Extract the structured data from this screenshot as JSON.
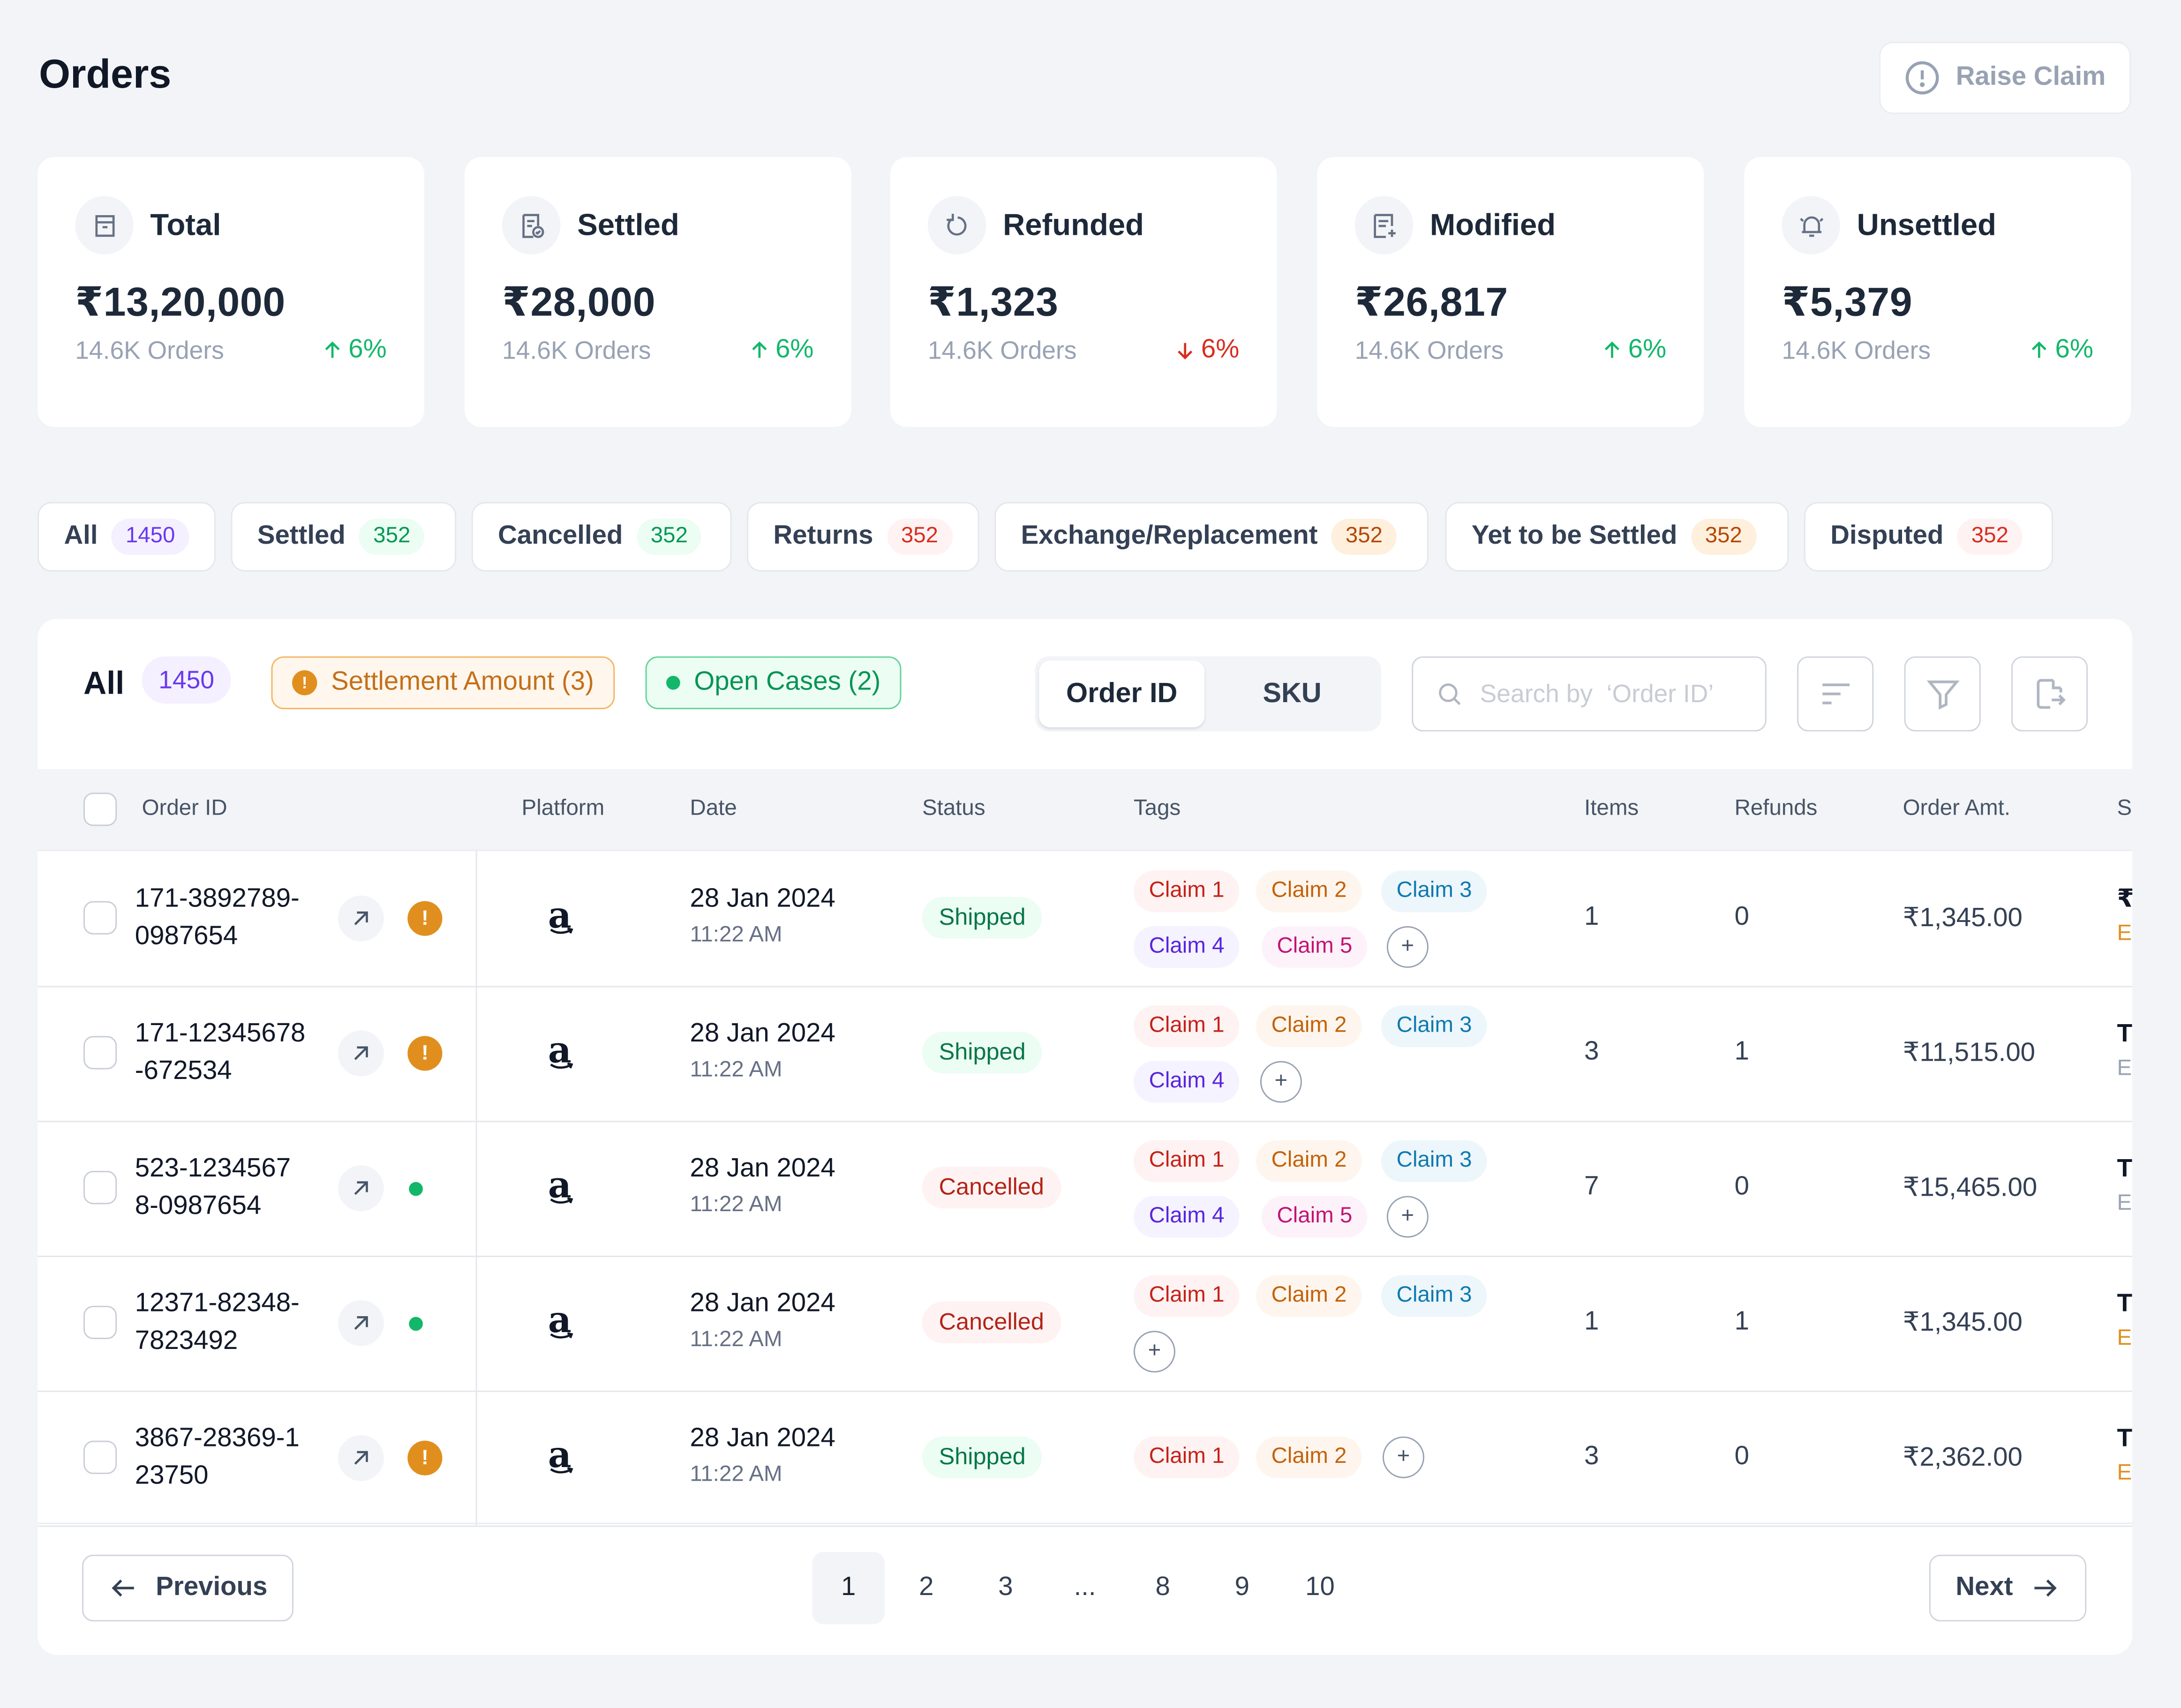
{
  "page": {
    "title": "Orders",
    "raise_claim_label": "Raise Claim"
  },
  "stats": [
    {
      "label": "Total",
      "value": "₹13,20,000",
      "orders": "14.6K Orders",
      "change": "6%",
      "direction": "up",
      "icon": "box-icon"
    },
    {
      "label": "Settled",
      "value": "₹28,000",
      "orders": "14.6K Orders",
      "change": "6%",
      "direction": "up",
      "icon": "receipt-check-icon"
    },
    {
      "label": "Refunded",
      "value": "₹1,323",
      "orders": "14.6K Orders",
      "change": "6%",
      "direction": "down",
      "icon": "refresh-icon"
    },
    {
      "label": "Modified",
      "value": "₹26,817",
      "orders": "14.6K Orders",
      "change": "6%",
      "direction": "up",
      "icon": "receipt-edit-icon"
    },
    {
      "label": "Unsettled",
      "value": "₹5,379",
      "orders": "14.6K Orders",
      "change": "6%",
      "direction": "up",
      "icon": "bell-icon"
    }
  ],
  "tabs": [
    {
      "label": "All",
      "count": "1450",
      "color": "purple"
    },
    {
      "label": "Settled",
      "count": "352",
      "color": "green"
    },
    {
      "label": "Cancelled",
      "count": "352",
      "color": "green"
    },
    {
      "label": "Returns",
      "count": "352",
      "color": "red"
    },
    {
      "label": "Exchange/Replacement",
      "count": "352",
      "color": "orange"
    },
    {
      "label": "Yet to be Settled",
      "count": "352",
      "color": "orange"
    },
    {
      "label": "Disputed",
      "count": "352",
      "color": "red"
    }
  ],
  "toolbar": {
    "all_label": "All",
    "all_count": "1450",
    "settlement_chip": "Settlement Amount (3)",
    "open_cases_chip": "Open Cases (2)",
    "segment_order_id": "Order ID",
    "segment_sku": "SKU",
    "search_placeholder": "Search by  ‘Order ID’"
  },
  "columns": [
    "Order ID",
    "Platform",
    "Date",
    "Status",
    "Tags",
    "Items",
    "Refunds",
    "Order Amt.",
    "S"
  ],
  "rows": [
    {
      "order_id_1": "171-3892789-",
      "order_id_2": "0987654",
      "indicator": "warning",
      "platform": "a",
      "date": "28 Jan 2024",
      "time": "11:22 AM",
      "status": "Shipped",
      "tags": [
        "Claim 1",
        "Claim 2",
        "Claim 3",
        "Claim 4",
        "Claim 5"
      ],
      "items": "1",
      "refunds": "0",
      "amount": "₹1,345.00",
      "s_top": "₹",
      "s_bottom": "E",
      "s_bottom_color": "orange"
    },
    {
      "order_id_1": "171-12345678",
      "order_id_2": "-672534",
      "indicator": "warning",
      "platform": "a",
      "date": "28 Jan 2024",
      "time": "11:22 AM",
      "status": "Shipped",
      "tags": [
        "Claim 1",
        "Claim 2",
        "Claim 3",
        "Claim 4"
      ],
      "items": "3",
      "refunds": "1",
      "amount": "₹11,515.00",
      "s_top": "T",
      "s_bottom": "E",
      "s_bottom_color": "gray"
    },
    {
      "order_id_1": "523-1234567",
      "order_id_2": "8-0987654",
      "indicator": "dot",
      "platform": "a",
      "date": "28 Jan 2024",
      "time": "11:22 AM",
      "status": "Cancelled",
      "tags": [
        "Claim 1",
        "Claim 2",
        "Claim 3",
        "Claim 4",
        "Claim 5"
      ],
      "items": "7",
      "refunds": "0",
      "amount": "₹15,465.00",
      "s_top": "T",
      "s_bottom": "E",
      "s_bottom_color": "gray"
    },
    {
      "order_id_1": "12371-82348-",
      "order_id_2": "7823492",
      "indicator": "dot",
      "platform": "a",
      "date": "28 Jan 2024",
      "time": "11:22 AM",
      "status": "Cancelled",
      "tags": [
        "Claim 1",
        "Claim 2",
        "Claim 3"
      ],
      "items": "1",
      "refunds": "1",
      "amount": "₹1,345.00",
      "s_top": "T",
      "s_bottom": "E",
      "s_bottom_color": "orange"
    },
    {
      "order_id_1": "3867-28369-1",
      "order_id_2": "23750",
      "indicator": "warning",
      "platform": "a",
      "date": "28 Jan 2024",
      "time": "11:22 AM",
      "status": "Shipped",
      "tags": [
        "Claim 1",
        "Claim 2"
      ],
      "items": "3",
      "refunds": "0",
      "amount": "₹2,362.00",
      "s_top": "T",
      "s_bottom": "E",
      "s_bottom_color": "orange"
    }
  ],
  "pagination": {
    "previous": "Previous",
    "next": "Next",
    "pages": [
      "1",
      "2",
      "3",
      "...",
      "8",
      "9",
      "10"
    ],
    "current": "1"
  },
  "colors": {
    "background": "#f2f4f7",
    "up": "#12b76a",
    "down": "#d92d20",
    "warning": "#e08f1e"
  }
}
